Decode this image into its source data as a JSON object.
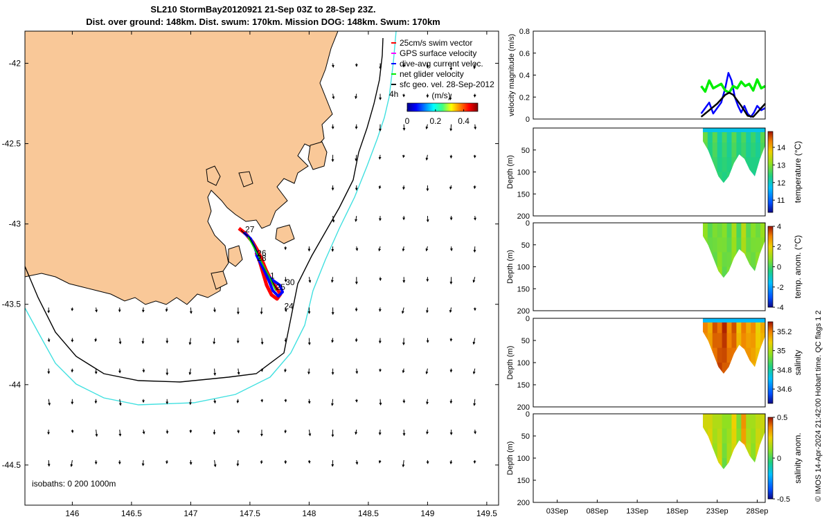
{
  "title": {
    "line1": "SL210 StormBay20120921 21-Sep 03Z to 28-Sep 23Z.",
    "line2": "Dist. over ground: 148km. Dist. swum: 170km. Mission DOG: 148km. Swum: 170km"
  },
  "colors": {
    "land": "#f9c898",
    "coast": "#000000",
    "isobath200": "#000000",
    "isobath1000": "#40e0e0",
    "track_red": "#ff0000",
    "track_blue": "#0000ff",
    "vel_green": "#00ee00"
  },
  "chart_data": [
    {
      "id": "map",
      "type": "scatter",
      "xlabel": "",
      "ylabel": "",
      "xlim": [
        145.6,
        149.6
      ],
      "ylim": [
        -44.75,
        -41.8
      ],
      "x_ticks": [
        "146",
        "146.5",
        "147",
        "147.5",
        "148",
        "148.5",
        "149",
        "149.5"
      ],
      "y_ticks": [
        "-42",
        "-42.5",
        "-43",
        "-43.5",
        "-44",
        "-44.5"
      ],
      "legend": [
        {
          "label": "25cm/s swim vector",
          "color": "#ff0000"
        },
        {
          "label": "GPS surface velocity",
          "color": "#ff00ff"
        },
        {
          "label": "dive-avg current veloc.",
          "color": "#0000ff"
        },
        {
          "label": "net glider velocity",
          "color": "#00ee00"
        },
        {
          "label": "sfc geo. vel. 28-Sep-2012",
          "color": "#000000"
        }
      ],
      "colorbar": {
        "label": "(m/s)",
        "ticks": [
          "0",
          "0.2",
          "0.4"
        ],
        "range": [
          0,
          0.5
        ]
      },
      "isobath_note": "isobaths: 0   200  1000m",
      "track_labels": [
        {
          "text": "27",
          "lon": 147.46,
          "lat": -43.05
        },
        {
          "text": "26",
          "lon": 147.56,
          "lat": -43.2
        },
        {
          "text": "28",
          "lon": 147.56,
          "lat": -43.23
        },
        {
          "text": "1",
          "lon": 147.67,
          "lat": -43.34
        },
        {
          "text": "30",
          "lon": 147.8,
          "lat": -43.38
        },
        {
          "text": "25",
          "lon": 147.72,
          "lat": -43.41
        },
        {
          "text": "24",
          "lon": 147.79,
          "lat": -43.53
        }
      ],
      "edge_label": "4h"
    },
    {
      "id": "velocity",
      "type": "line",
      "ylabel": "velocity magnitude (m/s)",
      "ylim": [
        0,
        0.8
      ],
      "y_ticks": [
        "0",
        "0.2",
        "0.4",
        "0.6",
        "0.8"
      ],
      "series": [
        {
          "name": "dive-avg current veloc.",
          "color": "#0000ff",
          "x_days": [
            21.0,
            21.5,
            22.0,
            22.5,
            23.0,
            23.5,
            24.0,
            24.4,
            24.8,
            25.2,
            25.6,
            26.0,
            26.4,
            26.8,
            27.2,
            27.6,
            28.0,
            28.5,
            29.0
          ],
          "values": [
            0.05,
            0.1,
            0.15,
            0.05,
            0.1,
            0.15,
            0.28,
            0.42,
            0.35,
            0.2,
            0.12,
            0.06,
            0.12,
            0.05,
            0.02,
            0.06,
            0.12,
            0.08,
            0.1
          ]
        },
        {
          "name": "net glider velocity",
          "color": "#00ee00",
          "x_days": [
            21.0,
            21.5,
            22.0,
            22.5,
            23.0,
            23.5,
            24.0,
            24.5,
            25.0,
            25.5,
            26.0,
            26.5,
            27.0,
            27.5,
            28.0,
            28.5,
            29.0
          ],
          "values": [
            0.3,
            0.25,
            0.35,
            0.28,
            0.3,
            0.32,
            0.26,
            0.24,
            0.3,
            0.28,
            0.34,
            0.3,
            0.32,
            0.26,
            0.36,
            0.28,
            0.3
          ]
        },
        {
          "name": "sfc geo. vel.",
          "color": "#000000",
          "x_days": [
            21.0,
            22.0,
            23.0,
            24.0,
            24.5,
            25.0,
            26.0,
            26.8,
            27.5,
            28.0,
            29.0
          ],
          "values": [
            0.02,
            0.08,
            0.14,
            0.22,
            0.24,
            0.22,
            0.12,
            0.03,
            0.02,
            0.06,
            0.14
          ]
        }
      ]
    },
    {
      "id": "temperature",
      "type": "heatmap",
      "ylabel": "Depth (m)",
      "ylim": [
        0,
        200
      ],
      "y_ticks": [
        "50",
        "100",
        "150",
        "200"
      ],
      "colorbar": {
        "label": "temperature (°C)",
        "ticks": [
          "11",
          "12",
          "13",
          "14"
        ],
        "range": [
          10.3,
          14.9
        ]
      },
      "profile_bottom_depths": [
        30,
        50,
        80,
        110,
        125,
        110,
        80,
        60,
        70,
        95,
        110,
        70,
        40
      ],
      "values": [
        12.6,
        12.5,
        12.5,
        12.4,
        12.4,
        12.4,
        12.5,
        12.5,
        12.4,
        12.4,
        12.3,
        12.4,
        12.5
      ],
      "surface_value": 11.8
    },
    {
      "id": "temp_anom",
      "type": "heatmap",
      "ylabel": "Depth (m)",
      "ylim": [
        0,
        200
      ],
      "y_ticks": [
        "0",
        "50",
        "100",
        "150",
        "200"
      ],
      "colorbar": {
        "label": "temp. anom. (°C)",
        "ticks": [
          "-4",
          "-2",
          "0",
          "2",
          "4"
        ],
        "range": [
          -4,
          4
        ]
      },
      "values": [
        0.4,
        0.6,
        0.2,
        0.8,
        0.3,
        0.5,
        0.7,
        0.4,
        0.9,
        0.6,
        0.3,
        0.8,
        0.5
      ]
    },
    {
      "id": "salinity",
      "type": "heatmap",
      "ylabel": "Depth (m)",
      "ylim": [
        0,
        200
      ],
      "y_ticks": [
        "0",
        "50",
        "100",
        "150",
        "200"
      ],
      "colorbar": {
        "label": "salinity",
        "ticks": [
          "34.6",
          "34.8",
          "35",
          "35.2"
        ],
        "range": [
          34.45,
          35.3
        ]
      },
      "values": [
        35.15,
        35.18,
        35.2,
        35.25,
        35.24,
        35.22,
        35.2,
        35.15,
        35.16,
        35.18,
        35.14,
        35.12,
        35.1
      ],
      "surface_value": 34.7
    },
    {
      "id": "salinity_anom",
      "type": "heatmap",
      "ylabel": "Depth (m)",
      "xlabel": "",
      "ylim": [
        0,
        200
      ],
      "y_ticks": [
        "0",
        "50",
        "100",
        "150",
        "200"
      ],
      "x_ticks": [
        "03Sep",
        "08Sep",
        "13Sep",
        "18Sep",
        "23Sep",
        "28Sep"
      ],
      "x_tick_days": [
        3,
        8,
        13,
        18,
        23,
        28
      ],
      "xlim_days": [
        0,
        29
      ],
      "colorbar": {
        "label": "salinity anom.",
        "ticks": [
          "-0.5",
          "0",
          "0.5"
        ],
        "range": [
          -0.5,
          0.5
        ]
      },
      "values": [
        0.15,
        0.25,
        0.1,
        0.2,
        0.05,
        0.15,
        0.2,
        0.12,
        0.3,
        0.18,
        0.08,
        0.22,
        0.14
      ]
    }
  ],
  "footer_vertical": "© IMOS 14-Apr-2024 21:42:00 Hobart time. QC flags 1  2"
}
